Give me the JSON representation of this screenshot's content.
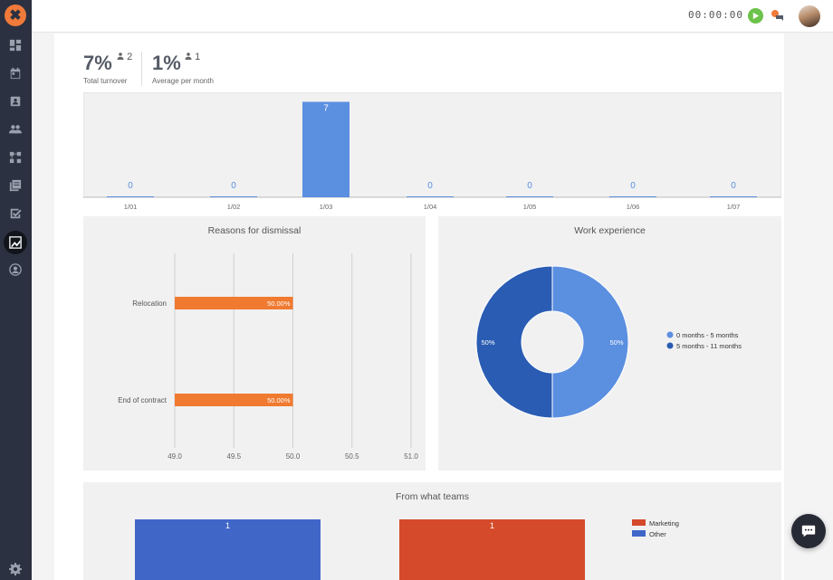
{
  "header": {
    "timer": "00:00:00",
    "icons": [
      "play-icon",
      "notification-icon",
      "avatar"
    ]
  },
  "sidebar": {
    "logo_glyph": "✖",
    "items": [
      "dashboard-icon",
      "calendar-icon",
      "contacts-icon",
      "team-icon",
      "structure-icon",
      "documents-icon",
      "tasks-icon",
      "reports-icon",
      "profile-icon",
      "settings-icon"
    ],
    "active": "reports-icon"
  },
  "kpis": [
    {
      "value": "7%",
      "count": "2",
      "label": "Total turnover"
    },
    {
      "value": "1%",
      "count": "1",
      "label": "Average per month"
    }
  ],
  "colors": {
    "bar_blue": "#5b8fe0",
    "orange": "#f07a30",
    "donut_light": "#5b8fe0",
    "donut_dark": "#2a5cb3",
    "marketing": "#d44a2a",
    "other": "#4066c8"
  },
  "chart_data": [
    {
      "type": "bar",
      "title": "",
      "categories": [
        "1/01",
        "1/02",
        "1/03",
        "1/04",
        "1/05",
        "1/06",
        "1/07"
      ],
      "values": [
        0,
        0,
        7,
        0,
        0,
        0,
        0
      ],
      "data_labels": [
        "0",
        "0",
        "7",
        "0",
        "0",
        "0",
        "0"
      ],
      "ylim": [
        0,
        7.7
      ]
    },
    {
      "type": "bar",
      "orientation": "horizontal",
      "title": "Reasons for dismissal",
      "categories": [
        "Relocation",
        "End of contract"
      ],
      "values": [
        50,
        50
      ],
      "data_labels": [
        "50.00%",
        "50.00%"
      ],
      "xticks": [
        "49.0",
        "49.5",
        "50.0",
        "50.5",
        "51.0"
      ],
      "xlim": [
        49,
        51
      ]
    },
    {
      "type": "pie",
      "title": "Work experience",
      "donut": true,
      "labels": [
        "0 months - 5 months",
        "5 months - 11 months"
      ],
      "values": [
        50,
        50
      ],
      "data_labels": [
        "50%",
        "50%"
      ],
      "legend": "right"
    },
    {
      "type": "bar",
      "title": "From what teams",
      "categories": [
        "Other",
        "Marketing"
      ],
      "values": [
        1,
        1
      ],
      "data_labels": [
        "1",
        "1"
      ],
      "legend_entries": [
        "Marketing",
        "Other"
      ],
      "legend": "top-right"
    }
  ]
}
